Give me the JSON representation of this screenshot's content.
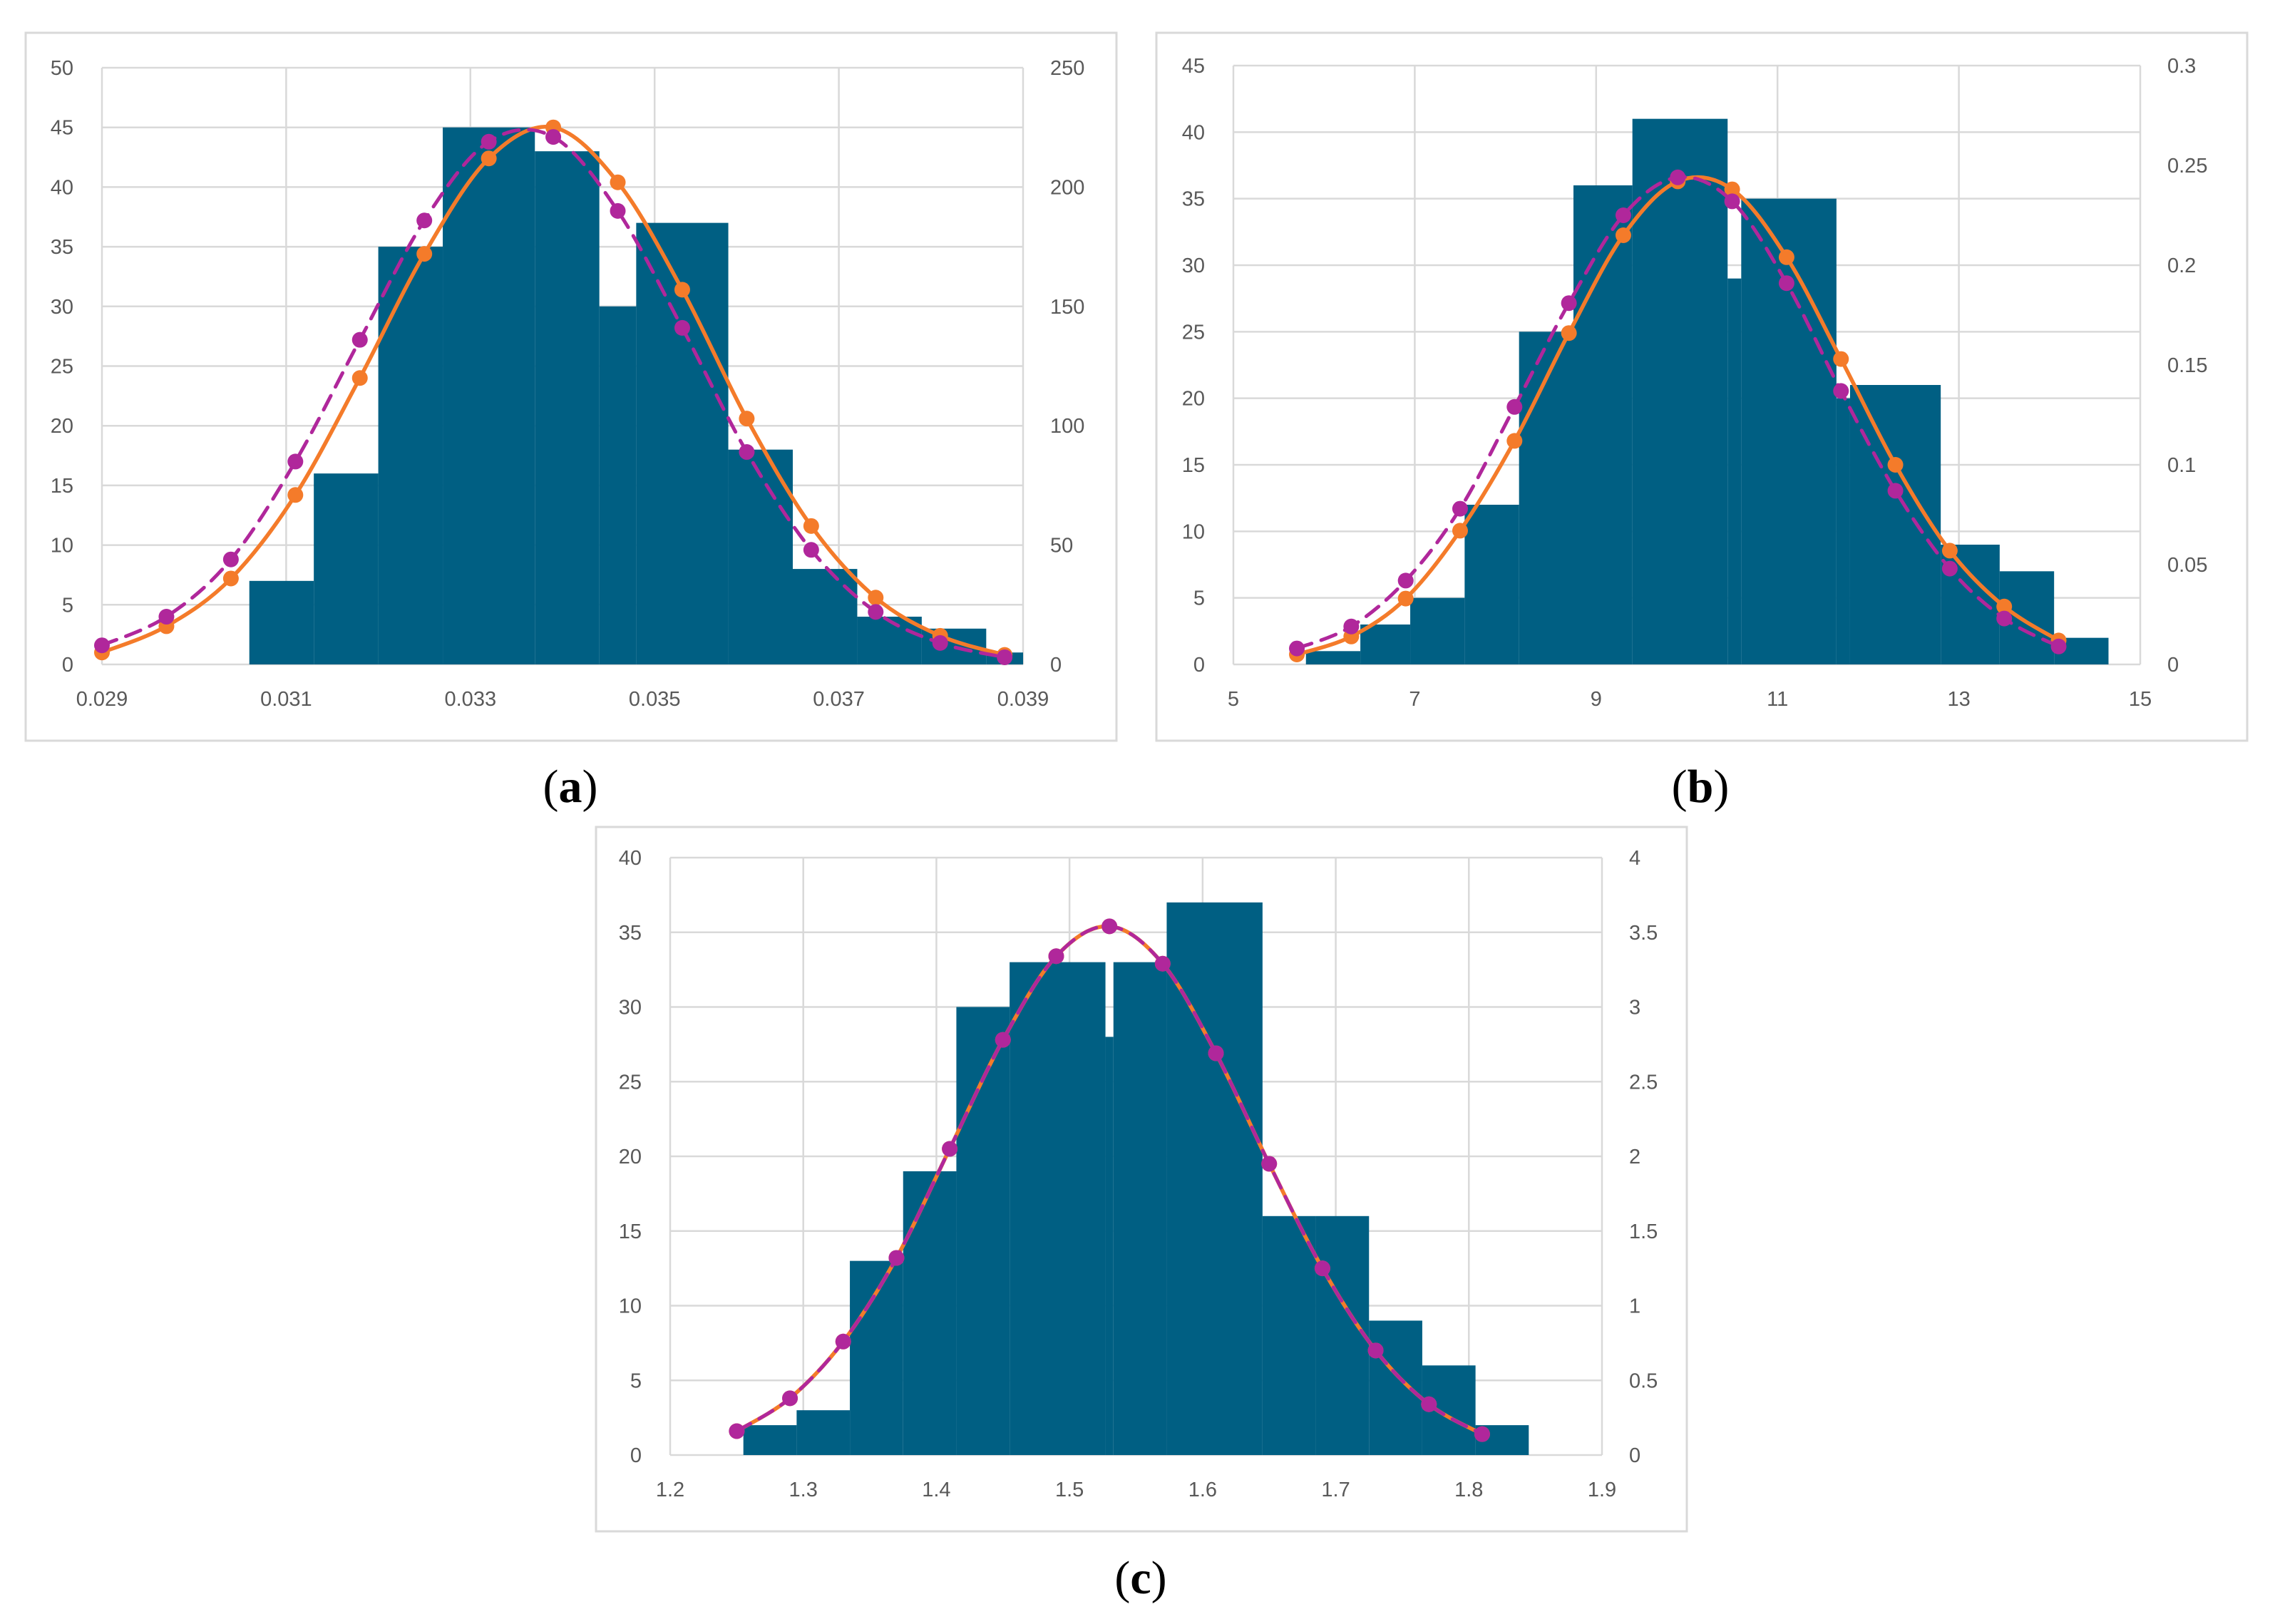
{
  "chart_data": [
    {
      "id": "a",
      "type": "histogram+line",
      "caption": {
        "open": "(",
        "letter": "a",
        "close": ")"
      },
      "colors": {
        "bars": "#005f83",
        "fit_line": "#f47b2a",
        "dashed_line": "#b0279b",
        "grid": "#d9d9d9"
      },
      "x_range": [
        0.029,
        0.039
      ],
      "x_ticks": [
        "0.029",
        "0.031",
        "0.033",
        "0.035",
        "0.037",
        "0.039"
      ],
      "x_tick_values": [
        0.029,
        0.031,
        0.033,
        0.035,
        0.037,
        0.039
      ],
      "y_left_range": [
        0,
        50
      ],
      "y_left_ticks": [
        "0",
        "5",
        "10",
        "15",
        "20",
        "25",
        "30",
        "35",
        "40",
        "45",
        "50"
      ],
      "y_right_range": [
        0,
        250
      ],
      "y_right_ticks": [
        "0",
        "50",
        "100",
        "150",
        "200",
        "250"
      ],
      "bins": [
        {
          "start": 0.0306,
          "end": 0.0313,
          "count": 7
        },
        {
          "start": 0.0313,
          "end": 0.032,
          "count": 16
        },
        {
          "start": 0.032,
          "end": 0.0327,
          "count": 35
        },
        {
          "start": 0.0327,
          "end": 0.0337,
          "count": 45
        },
        {
          "start": 0.0337,
          "end": 0.0344,
          "count": 43
        },
        {
          "start": 0.0344,
          "end": 0.0348,
          "count": 30
        },
        {
          "start": 0.0348,
          "end": 0.0358,
          "count": 37
        },
        {
          "start": 0.0358,
          "end": 0.0365,
          "count": 18
        },
        {
          "start": 0.0365,
          "end": 0.0372,
          "count": 8
        },
        {
          "start": 0.0372,
          "end": 0.0379,
          "count": 4
        },
        {
          "start": 0.0379,
          "end": 0.0386,
          "count": 3
        },
        {
          "start": 0.0386,
          "end": 0.039,
          "count": 1
        }
      ],
      "series": [
        {
          "name": "orange solid fit",
          "style": "solid",
          "x": [
            0.029,
            0.0297,
            0.0304,
            0.0311,
            0.0318,
            0.0325,
            0.0332,
            0.0339,
            0.0346,
            0.0353,
            0.036,
            0.0367,
            0.0374,
            0.0381,
            0.0388
          ],
          "y": [
            5,
            16,
            36,
            71,
            120,
            172,
            212,
            225,
            202,
            157,
            103,
            58,
            28,
            12,
            4
          ]
        },
        {
          "name": "magenta dashed fit",
          "style": "dashed",
          "x": [
            0.029,
            0.0297,
            0.0304,
            0.0311,
            0.0318,
            0.0325,
            0.0332,
            0.0339,
            0.0346,
            0.0353,
            0.036,
            0.0367,
            0.0374,
            0.0381,
            0.0388
          ],
          "y": [
            8,
            20,
            44,
            85,
            136,
            186,
            219,
            221,
            190,
            141,
            89,
            48,
            22,
            9,
            3
          ]
        }
      ]
    },
    {
      "id": "b",
      "type": "histogram+line",
      "caption": {
        "open": "(",
        "letter": "b",
        "close": ")"
      },
      "colors": {
        "bars": "#005f83",
        "fit_line": "#f47b2a",
        "dashed_line": "#b0279b",
        "grid": "#d9d9d9"
      },
      "x_range": [
        5,
        15
      ],
      "x_ticks": [
        "5",
        "7",
        "9",
        "11",
        "13",
        "15"
      ],
      "x_tick_values": [
        5,
        7,
        9,
        11,
        13,
        15
      ],
      "y_left_range": [
        0,
        45
      ],
      "y_left_ticks": [
        "0",
        "5",
        "10",
        "15",
        "20",
        "25",
        "30",
        "35",
        "40",
        "45"
      ],
      "y_right_range": [
        0,
        0.3
      ],
      "y_right_ticks": [
        "0",
        "0.05",
        "0.1",
        "0.15",
        "0.2",
        "0.25",
        "0.3"
      ],
      "bins": [
        {
          "start": 5.8,
          "end": 6.4,
          "count": 1
        },
        {
          "start": 6.4,
          "end": 6.95,
          "count": 3
        },
        {
          "start": 6.95,
          "end": 7.55,
          "count": 5
        },
        {
          "start": 7.55,
          "end": 8.15,
          "count": 12
        },
        {
          "start": 8.15,
          "end": 8.75,
          "count": 25
        },
        {
          "start": 8.75,
          "end": 9.4,
          "count": 36
        },
        {
          "start": 9.4,
          "end": 10.45,
          "count": 41
        },
        {
          "start": 10.45,
          "end": 10.6,
          "count": 29
        },
        {
          "start": 10.6,
          "end": 11.65,
          "count": 35
        },
        {
          "start": 11.65,
          "end": 11.8,
          "count": 20
        },
        {
          "start": 11.8,
          "end": 12.8,
          "count": 21
        },
        {
          "start": 12.8,
          "end": 13.45,
          "count": 9
        },
        {
          "start": 13.45,
          "end": 14.05,
          "count": 7
        },
        {
          "start": 14.05,
          "end": 14.65,
          "count": 2
        }
      ],
      "series": [
        {
          "name": "orange solid fit",
          "style": "solid",
          "x": [
            5.7,
            6.3,
            6.9,
            7.5,
            8.1,
            8.7,
            9.3,
            9.9,
            10.5,
            11.1,
            11.7,
            12.3,
            12.9,
            13.5,
            14.1
          ],
          "y": [
            0.005,
            0.014,
            0.033,
            0.067,
            0.112,
            0.166,
            0.215,
            0.242,
            0.238,
            0.204,
            0.153,
            0.1,
            0.057,
            0.029,
            0.012
          ]
        },
        {
          "name": "magenta dashed fit",
          "style": "dashed",
          "x": [
            5.7,
            6.3,
            6.9,
            7.5,
            8.1,
            8.7,
            9.3,
            9.9,
            10.5,
            11.1,
            11.7,
            12.3,
            12.9,
            13.5,
            14.1
          ],
          "y": [
            0.008,
            0.019,
            0.042,
            0.078,
            0.129,
            0.181,
            0.225,
            0.244,
            0.232,
            0.191,
            0.137,
            0.087,
            0.048,
            0.023,
            0.009
          ]
        }
      ]
    },
    {
      "id": "c",
      "type": "histogram+line",
      "caption": {
        "open": "(",
        "letter": "c",
        "close": ")"
      },
      "colors": {
        "bars": "#005f83",
        "fit_line": "#f47b2a",
        "dashed_line": "#b0279b",
        "grid": "#d9d9d9"
      },
      "x_range": [
        1.2,
        1.9
      ],
      "x_ticks": [
        "1.2",
        "1.3",
        "1.4",
        "1.5",
        "1.6",
        "1.7",
        "1.8",
        "1.9"
      ],
      "x_tick_values": [
        1.2,
        1.3,
        1.4,
        1.5,
        1.6,
        1.7,
        1.8,
        1.9
      ],
      "y_left_range": [
        0,
        40
      ],
      "y_left_ticks": [
        "0",
        "5",
        "10",
        "15",
        "20",
        "25",
        "30",
        "35",
        "40"
      ],
      "y_right_range": [
        0,
        4
      ],
      "y_right_ticks": [
        "0",
        "0.5",
        "1",
        "1.5",
        "2",
        "2.5",
        "3",
        "3.5",
        "4"
      ],
      "bins": [
        {
          "start": 1.255,
          "end": 1.295,
          "count": 2
        },
        {
          "start": 1.295,
          "end": 1.335,
          "count": 3
        },
        {
          "start": 1.335,
          "end": 1.375,
          "count": 13
        },
        {
          "start": 1.375,
          "end": 1.415,
          "count": 19
        },
        {
          "start": 1.415,
          "end": 1.455,
          "count": 30
        },
        {
          "start": 1.455,
          "end": 1.527,
          "count": 33
        },
        {
          "start": 1.527,
          "end": 1.533,
          "count": 28
        },
        {
          "start": 1.533,
          "end": 1.573,
          "count": 33
        },
        {
          "start": 1.573,
          "end": 1.645,
          "count": 37
        },
        {
          "start": 1.645,
          "end": 1.685,
          "count": 16
        },
        {
          "start": 1.685,
          "end": 1.725,
          "count": 16
        },
        {
          "start": 1.725,
          "end": 1.765,
          "count": 9
        },
        {
          "start": 1.765,
          "end": 1.805,
          "count": 6
        },
        {
          "start": 1.805,
          "end": 1.845,
          "count": 2
        }
      ],
      "series": [
        {
          "name": "orange solid fit",
          "style": "solid",
          "x": [
            1.25,
            1.29,
            1.33,
            1.37,
            1.41,
            1.45,
            1.49,
            1.53,
            1.57,
            1.61,
            1.65,
            1.69,
            1.73,
            1.77,
            1.81
          ],
          "y": [
            0.16,
            0.38,
            0.76,
            1.32,
            2.05,
            2.78,
            3.34,
            3.54,
            3.29,
            2.69,
            1.95,
            1.25,
            0.7,
            0.34,
            0.14
          ]
        },
        {
          "name": "magenta dashed fit",
          "style": "dashed",
          "x": [
            1.25,
            1.29,
            1.33,
            1.37,
            1.41,
            1.45,
            1.49,
            1.53,
            1.57,
            1.61,
            1.65,
            1.69,
            1.73,
            1.77,
            1.81
          ],
          "y": [
            0.16,
            0.38,
            0.76,
            1.32,
            2.05,
            2.78,
            3.34,
            3.54,
            3.29,
            2.69,
            1.95,
            1.25,
            0.7,
            0.34,
            0.14
          ]
        }
      ]
    }
  ]
}
